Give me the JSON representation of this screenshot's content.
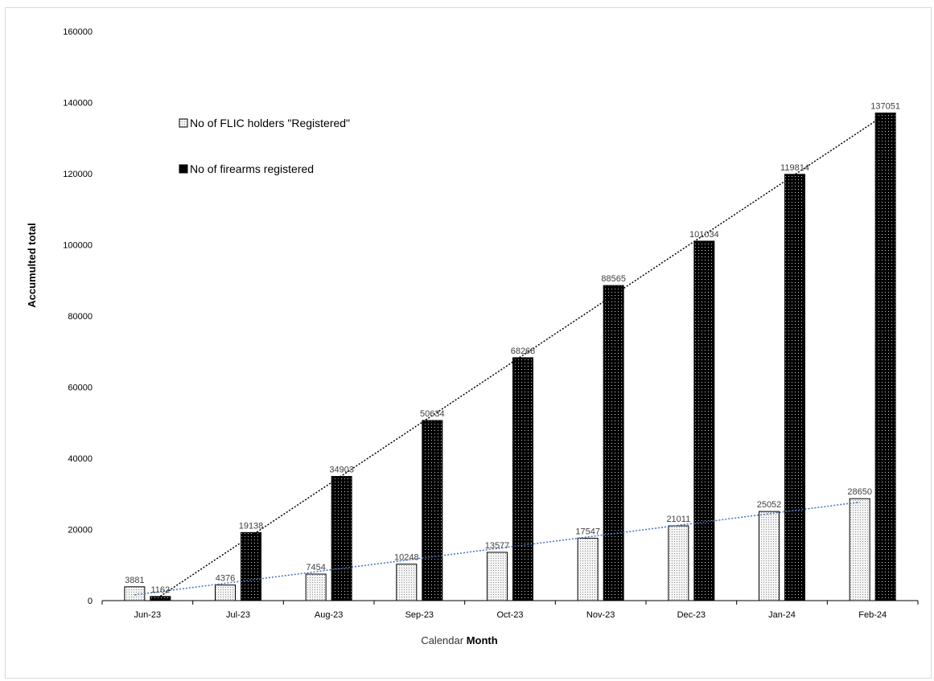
{
  "chart_data": {
    "type": "bar",
    "title": "",
    "xlabel_parts": [
      "Calendar ",
      "Month"
    ],
    "ylabel": "Accumulted total",
    "categories": [
      "Jun-23",
      "Jul-23",
      "Aug-23",
      "Sep-23",
      "Oct-23",
      "Nov-23",
      "Dec-23",
      "Jan-24",
      "Feb-24"
    ],
    "ylim": [
      0,
      160000
    ],
    "yticks": [
      "0",
      "20000",
      "40000",
      "60000",
      "80000",
      "100000",
      "120000",
      "140000",
      "160000"
    ],
    "grid": false,
    "legend_position": "top-left",
    "series": [
      {
        "name": "No of FLIC holders \"Registered\"",
        "values": [
          3881,
          4376,
          7454,
          10248,
          13577,
          17547,
          21011,
          25052,
          28650
        ],
        "fill": "light-dotted",
        "trendline": "linear",
        "trendline_color": "#4472c4"
      },
      {
        "name": "No of firearms registered",
        "values": [
          1162,
          19138,
          34903,
          50634,
          68268,
          88565,
          101034,
          119814,
          137051
        ],
        "fill": "dark-dotted",
        "trendline": "linear",
        "trendline_color": "#000000"
      }
    ]
  }
}
